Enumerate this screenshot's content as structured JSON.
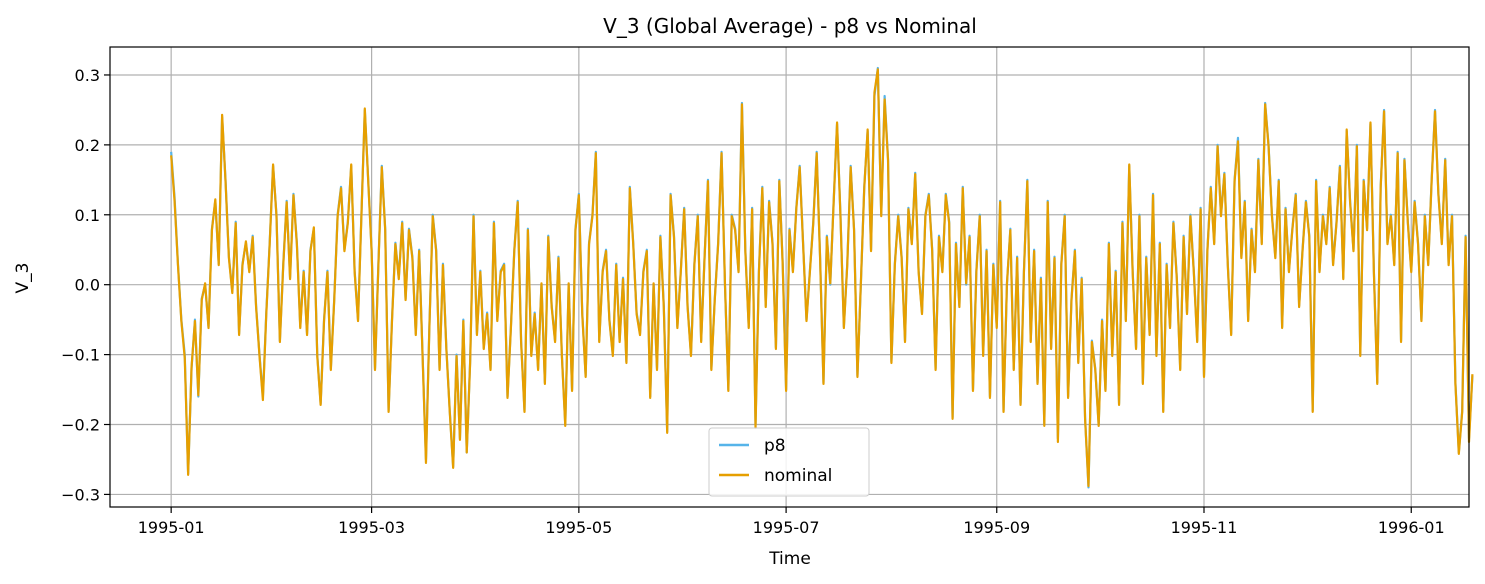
{
  "chart_data": {
    "type": "line",
    "title": "V_3 (Global Average) - p8 vs Nominal",
    "xlabel": "Time",
    "ylabel": "V_3",
    "grid": true,
    "legend_position": "bottom-center",
    "xlim": [
      "1994-12-14",
      "1996-01-18"
    ],
    "ylim": [
      -0.318,
      0.34
    ],
    "x_ticks": [
      "1995-01",
      "1995-03",
      "1995-05",
      "1995-07",
      "1995-09",
      "1995-11",
      "1996-01"
    ],
    "y_ticks": [
      -0.3,
      -0.2,
      -0.1,
      0.0,
      0.1,
      0.2,
      0.3
    ],
    "y_tick_labels": [
      "−0.3",
      "−0.2",
      "−0.1",
      "0.0",
      "0.1",
      "0.2",
      "0.3"
    ],
    "x_start": "1995-01-01",
    "x_step_days": 1,
    "series": [
      {
        "name": "p8",
        "color": "#56b4e9",
        "values": [
          0.19,
          0.125,
          0.03,
          -0.05,
          -0.1,
          -0.27,
          -0.12,
          -0.05,
          -0.16,
          -0.02,
          0.0,
          -0.06,
          0.08,
          0.12,
          0.03,
          0.24,
          0.15,
          0.04,
          -0.01,
          0.09,
          -0.07,
          0.03,
          0.06,
          0.02,
          0.07,
          -0.03,
          -0.1,
          -0.16,
          -0.04,
          0.06,
          0.17,
          0.1,
          -0.08,
          0.03,
          0.12,
          0.01,
          0.13,
          0.06,
          -0.06,
          0.02,
          -0.07,
          0.05,
          0.08,
          -0.1,
          -0.17,
          -0.05,
          0.02,
          -0.12,
          -0.02,
          0.1,
          0.14,
          0.05,
          0.09,
          0.17,
          0.02,
          -0.05,
          0.1,
          0.25,
          0.15,
          0.05,
          -0.12,
          0.03,
          0.17,
          0.08,
          -0.18,
          -0.05,
          0.06,
          0.01,
          0.09,
          -0.02,
          0.08,
          0.04,
          -0.07,
          0.05,
          -0.1,
          -0.25,
          -0.06,
          0.1,
          0.05,
          -0.12,
          0.03,
          -0.09,
          -0.18,
          -0.26,
          -0.1,
          -0.22,
          -0.05,
          -0.24,
          -0.11,
          0.1,
          -0.07,
          0.02,
          -0.09,
          -0.04,
          -0.12,
          0.09,
          -0.05,
          0.02,
          0.03,
          -0.16,
          -0.06,
          0.05,
          0.12,
          -0.08,
          -0.18,
          0.08,
          -0.1,
          -0.04,
          -0.12,
          0.0,
          -0.14,
          0.07,
          -0.03,
          -0.08,
          0.04,
          -0.1,
          -0.2,
          0.0,
          -0.15,
          0.08,
          0.13,
          -0.04,
          -0.13,
          0.06,
          0.1,
          0.19,
          -0.08,
          0.02,
          0.05,
          -0.05,
          -0.1,
          0.03,
          -0.08,
          0.01,
          -0.11,
          0.14,
          0.06,
          -0.04,
          -0.07,
          0.02,
          0.05,
          -0.16,
          0.0,
          -0.12,
          0.07,
          -0.03,
          -0.21,
          0.13,
          0.07,
          -0.06,
          0.02,
          0.11,
          -0.03,
          -0.1,
          0.03,
          0.1,
          -0.08,
          0.04,
          0.15,
          -0.12,
          -0.02,
          0.06,
          0.19,
          0.0,
          -0.15,
          0.1,
          0.08,
          0.02,
          0.26,
          0.05,
          -0.06,
          0.11,
          -0.2,
          0.02,
          0.14,
          -0.03,
          0.12,
          0.06,
          -0.09,
          0.15,
          0.03,
          -0.15,
          0.08,
          0.02,
          0.11,
          0.17,
          0.06,
          -0.05,
          0.02,
          0.09,
          0.19,
          0.04,
          -0.14,
          0.07,
          0.0,
          0.12,
          0.23,
          0.1,
          -0.06,
          0.03,
          0.17,
          0.08,
          -0.13,
          0.0,
          0.14,
          0.22,
          0.05,
          0.27,
          0.31,
          0.1,
          0.27,
          0.18,
          -0.11,
          0.03,
          0.1,
          0.04,
          -0.08,
          0.11,
          0.06,
          0.16,
          0.02,
          -0.04,
          0.1,
          0.13,
          0.05,
          -0.12,
          0.07,
          0.02,
          0.13,
          0.09,
          -0.19,
          0.06,
          -0.03,
          0.14,
          0.0,
          0.07,
          -0.15,
          0.02,
          0.1,
          -0.1,
          0.05,
          -0.16,
          0.03,
          -0.06,
          0.12,
          -0.18,
          0.0,
          0.08,
          -0.12,
          0.04,
          -0.17,
          0.02,
          0.15,
          -0.08,
          0.05,
          -0.14,
          0.01,
          -0.2,
          0.12,
          -0.09,
          0.04,
          -0.22,
          0.03,
          0.1,
          -0.16,
          -0.02,
          0.05,
          -0.11,
          0.01,
          -0.19,
          -0.29,
          -0.08,
          -0.12,
          -0.2,
          -0.05,
          -0.15,
          0.06,
          -0.1,
          0.02,
          -0.17,
          0.09,
          -0.05,
          0.17,
          0.02,
          -0.09,
          0.1,
          -0.14,
          0.04,
          -0.07,
          0.13,
          -0.1,
          0.06,
          -0.18,
          0.03,
          -0.06,
          0.09,
          0.01,
          -0.12,
          0.07,
          -0.04,
          0.1,
          0.02,
          -0.08,
          0.11,
          -0.13,
          0.05,
          0.14,
          0.06,
          0.2,
          0.1,
          0.16,
          0.03,
          -0.07,
          0.15,
          0.21,
          0.04,
          0.12,
          -0.05,
          0.08,
          0.02,
          0.18,
          0.06,
          0.26,
          0.2,
          0.1,
          0.04,
          0.15,
          -0.06,
          0.11,
          0.02,
          0.08,
          0.13,
          -0.03,
          0.05,
          0.12,
          0.07,
          -0.18,
          0.15,
          0.02,
          0.1,
          0.06,
          0.14,
          0.03,
          0.09,
          0.17,
          0.01,
          0.22,
          0.12,
          0.05,
          0.2,
          -0.1,
          0.15,
          0.08,
          0.23,
          0.02,
          -0.14,
          0.14,
          0.25,
          0.06,
          0.1,
          0.03,
          0.19,
          -0.08,
          0.18,
          0.09,
          0.02,
          0.12,
          0.06,
          -0.05,
          0.1,
          0.03,
          0.15,
          0.25,
          0.13,
          0.06,
          0.18,
          0.03,
          0.1,
          -0.14,
          -0.24,
          -0.18,
          0.07,
          -0.22,
          -0.13
        ]
      },
      {
        "name": "nominal",
        "color": "#e69f00",
        "values": [
          0.185,
          0.12,
          0.028,
          -0.052,
          -0.105,
          -0.272,
          -0.118,
          -0.052,
          -0.158,
          -0.022,
          0.002,
          -0.062,
          0.078,
          0.122,
          0.028,
          0.243,
          0.148,
          0.038,
          -0.012,
          0.088,
          -0.072,
          0.028,
          0.062,
          0.018,
          0.068,
          -0.032,
          -0.102,
          -0.165,
          -0.042,
          0.058,
          0.172,
          0.098,
          -0.082,
          0.028,
          0.118,
          0.008,
          0.128,
          0.058,
          -0.062,
          0.018,
          -0.072,
          0.048,
          0.082,
          -0.102,
          -0.172,
          -0.052,
          0.018,
          -0.122,
          -0.022,
          0.098,
          0.138,
          0.048,
          0.088,
          0.172,
          0.018,
          -0.052,
          0.098,
          0.252,
          0.148,
          0.048,
          -0.122,
          0.028,
          0.168,
          0.078,
          -0.182,
          -0.052,
          0.058,
          0.008,
          0.088,
          -0.022,
          0.078,
          0.038,
          -0.072,
          0.048,
          -0.102,
          -0.255,
          -0.062,
          0.098,
          0.048,
          -0.122,
          0.028,
          -0.092,
          -0.182,
          -0.262,
          -0.102,
          -0.222,
          -0.052,
          -0.24,
          -0.112,
          0.098,
          -0.072,
          0.018,
          -0.092,
          -0.042,
          -0.122,
          0.088,
          -0.052,
          0.018,
          0.028,
          -0.162,
          -0.062,
          0.048,
          0.118,
          -0.082,
          -0.182,
          0.078,
          -0.102,
          -0.042,
          -0.122,
          0.002,
          -0.142,
          0.068,
          -0.032,
          -0.082,
          0.038,
          -0.102,
          -0.202,
          0.002,
          -0.152,
          0.078,
          0.128,
          -0.042,
          -0.132,
          0.058,
          0.098,
          0.188,
          -0.082,
          0.018,
          0.048,
          -0.052,
          -0.102,
          0.028,
          -0.082,
          0.008,
          -0.112,
          0.138,
          0.058,
          -0.042,
          -0.072,
          0.018,
          0.048,
          -0.162,
          0.002,
          -0.122,
          0.068,
          -0.032,
          -0.212,
          0.128,
          0.068,
          -0.062,
          0.018,
          0.108,
          -0.032,
          -0.102,
          0.028,
          0.098,
          -0.082,
          0.038,
          0.148,
          -0.122,
          -0.022,
          0.058,
          0.188,
          0.002,
          -0.152,
          0.098,
          0.078,
          0.018,
          0.258,
          0.048,
          -0.062,
          0.108,
          -0.205,
          0.018,
          0.138,
          -0.032,
          0.118,
          0.058,
          -0.092,
          0.148,
          0.028,
          -0.152,
          0.078,
          0.018,
          0.108,
          0.168,
          0.058,
          -0.052,
          0.018,
          0.088,
          0.188,
          0.038,
          -0.142,
          0.068,
          0.002,
          0.118,
          0.232,
          0.098,
          -0.062,
          0.028,
          0.168,
          0.078,
          -0.132,
          0.002,
          0.138,
          0.222,
          0.048,
          0.275,
          0.308,
          0.098,
          0.265,
          0.178,
          -0.112,
          0.028,
          0.098,
          0.038,
          -0.082,
          0.108,
          0.058,
          0.158,
          0.018,
          -0.042,
          0.098,
          0.128,
          0.048,
          -0.122,
          0.068,
          0.018,
          0.128,
          0.088,
          -0.192,
          0.058,
          -0.032,
          0.138,
          0.002,
          0.068,
          -0.152,
          0.018,
          0.098,
          -0.102,
          0.048,
          -0.162,
          0.028,
          -0.062,
          0.118,
          -0.182,
          0.002,
          0.078,
          -0.122,
          0.038,
          -0.172,
          0.018,
          0.148,
          -0.082,
          0.048,
          -0.142,
          0.008,
          -0.202,
          0.118,
          -0.092,
          0.038,
          -0.225,
          0.028,
          0.098,
          -0.162,
          -0.022,
          0.048,
          -0.112,
          0.008,
          -0.192,
          -0.288,
          -0.082,
          -0.122,
          -0.202,
          -0.052,
          -0.152,
          0.058,
          -0.102,
          0.018,
          -0.172,
          0.088,
          -0.052,
          0.172,
          0.018,
          -0.092,
          0.098,
          -0.142,
          0.038,
          -0.072,
          0.128,
          -0.102,
          0.058,
          -0.182,
          0.028,
          -0.062,
          0.088,
          0.008,
          -0.122,
          0.068,
          -0.042,
          0.098,
          0.018,
          -0.082,
          0.108,
          -0.132,
          0.048,
          0.138,
          0.058,
          0.198,
          0.098,
          0.158,
          0.028,
          -0.072,
          0.148,
          0.205,
          0.038,
          0.118,
          -0.052,
          0.078,
          0.018,
          0.178,
          0.058,
          0.258,
          0.198,
          0.098,
          0.038,
          0.148,
          -0.062,
          0.108,
          0.018,
          0.078,
          0.128,
          -0.032,
          0.048,
          0.118,
          0.068,
          -0.182,
          0.148,
          0.018,
          0.098,
          0.058,
          0.138,
          0.028,
          0.088,
          0.168,
          0.008,
          0.222,
          0.118,
          0.048,
          0.198,
          -0.102,
          0.148,
          0.078,
          0.232,
          0.018,
          -0.142,
          0.138,
          0.248,
          0.058,
          0.098,
          0.028,
          0.188,
          -0.082,
          0.178,
          0.088,
          0.018,
          0.118,
          0.058,
          -0.052,
          0.098,
          0.028,
          0.148,
          0.248,
          0.128,
          0.058,
          0.178,
          0.028,
          0.098,
          -0.142,
          -0.242,
          -0.182,
          0.068,
          -0.225,
          -0.128
        ]
      }
    ]
  }
}
